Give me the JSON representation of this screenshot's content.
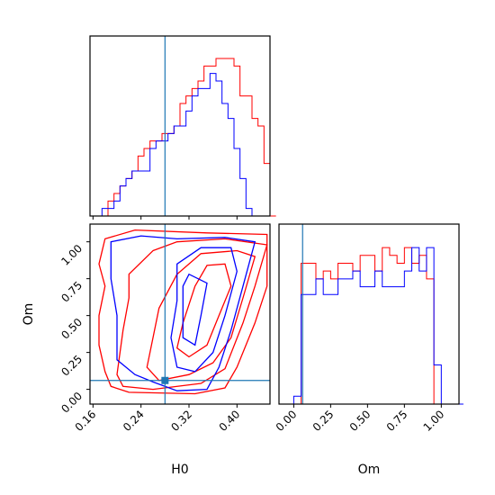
{
  "chart_data": [
    {
      "type": "histogram",
      "panel": "H0 marginal",
      "xlim": [
        0.155,
        0.455
      ],
      "truth": 0.28,
      "series": [
        {
          "color": "#ff0000",
          "x": [
            0.175,
            0.185,
            0.195,
            0.205,
            0.215,
            0.225,
            0.235,
            0.245,
            0.255,
            0.265,
            0.275,
            0.285,
            0.295,
            0.305,
            0.315,
            0.325,
            0.335,
            0.345,
            0.355,
            0.365,
            0.375,
            0.385,
            0.395,
            0.405,
            0.415,
            0.425,
            0.435,
            0.445,
            0.455
          ],
          "y": [
            0,
            2,
            3,
            4,
            5,
            6,
            8,
            9,
            10,
            10,
            11,
            11,
            12,
            15,
            16,
            17,
            18,
            20,
            20,
            21,
            21,
            21,
            20,
            16,
            16,
            13,
            12,
            7,
            0
          ]
        },
        {
          "color": "#0000ff",
          "x": [
            0.165,
            0.175,
            0.185,
            0.195,
            0.205,
            0.215,
            0.225,
            0.235,
            0.245,
            0.255,
            0.265,
            0.275,
            0.285,
            0.295,
            0.305,
            0.315,
            0.325,
            0.335,
            0.345,
            0.355,
            0.365,
            0.375,
            0.385,
            0.395,
            0.405,
            0.415,
            0.425
          ],
          "y": [
            0,
            1,
            1,
            2,
            4,
            5,
            6,
            6,
            6,
            9,
            10,
            10,
            11,
            12,
            12,
            14,
            16,
            17,
            17,
            19,
            18,
            15,
            13,
            9,
            5,
            1,
            0
          ]
        }
      ],
      "xticks": [
        "0.16",
        "0.24",
        "0.32",
        "0.40"
      ]
    },
    {
      "type": "contour",
      "panel": "H0 vs Om",
      "xlabel": "H0",
      "ylabel": "Om",
      "xlim": [
        0.155,
        0.455
      ],
      "ylim": [
        -0.1,
        1.12
      ],
      "truth": {
        "x": 0.28,
        "y": 0.06
      },
      "xticks": [
        "0.16",
        "0.24",
        "0.32",
        "0.40"
      ],
      "yticks": [
        "0.00",
        "0.25",
        "0.50",
        "0.75",
        "1.00"
      ],
      "series": [
        {
          "color": "#ff0000",
          "contours": [
            [
              [
                0.18,
                1.02
              ],
              [
                0.23,
                1.08
              ],
              [
                0.35,
                1.06
              ],
              [
                0.45,
                1.05
              ],
              [
                0.45,
                0.7
              ],
              [
                0.43,
                0.45
              ],
              [
                0.4,
                0.15
              ],
              [
                0.38,
                0.01
              ],
              [
                0.33,
                -0.03
              ],
              [
                0.22,
                -0.02
              ],
              [
                0.19,
                0.02
              ],
              [
                0.18,
                0.12
              ],
              [
                0.17,
                0.3
              ],
              [
                0.17,
                0.5
              ],
              [
                0.18,
                0.7
              ],
              [
                0.17,
                0.85
              ],
              [
                0.18,
                1.02
              ]
            ],
            [
              [
                0.26,
                0.94
              ],
              [
                0.3,
                1.0
              ],
              [
                0.38,
                1.02
              ],
              [
                0.45,
                0.98
              ],
              [
                0.43,
                0.7
              ],
              [
                0.41,
                0.45
              ],
              [
                0.38,
                0.14
              ],
              [
                0.34,
                0.04
              ],
              [
                0.26,
                0.0
              ],
              [
                0.21,
                0.02
              ],
              [
                0.2,
                0.1
              ],
              [
                0.21,
                0.4
              ],
              [
                0.22,
                0.62
              ],
              [
                0.22,
                0.78
              ],
              [
                0.26,
                0.94
              ]
            ],
            [
              [
                0.3,
                0.78
              ],
              [
                0.34,
                0.92
              ],
              [
                0.4,
                0.94
              ],
              [
                0.43,
                0.9
              ],
              [
                0.41,
                0.62
              ],
              [
                0.39,
                0.35
              ],
              [
                0.36,
                0.18
              ],
              [
                0.32,
                0.1
              ],
              [
                0.27,
                0.06
              ],
              [
                0.25,
                0.15
              ],
              [
                0.26,
                0.35
              ],
              [
                0.27,
                0.55
              ],
              [
                0.3,
                0.78
              ]
            ],
            [
              [
                0.33,
                0.7
              ],
              [
                0.35,
                0.84
              ],
              [
                0.38,
                0.85
              ],
              [
                0.39,
                0.7
              ],
              [
                0.37,
                0.5
              ],
              [
                0.35,
                0.3
              ],
              [
                0.32,
                0.22
              ],
              [
                0.3,
                0.28
              ],
              [
                0.31,
                0.45
              ],
              [
                0.33,
                0.7
              ]
            ]
          ]
        },
        {
          "color": "#0000ff",
          "contours": [
            [
              [
                0.19,
                1.0
              ],
              [
                0.24,
                1.04
              ],
              [
                0.3,
                1.02
              ],
              [
                0.38,
                1.03
              ],
              [
                0.43,
                1.0
              ],
              [
                0.41,
                0.7
              ],
              [
                0.39,
                0.4
              ],
              [
                0.37,
                0.15
              ],
              [
                0.35,
                0.0
              ],
              [
                0.3,
                -0.01
              ],
              [
                0.26,
                0.05
              ],
              [
                0.23,
                0.1
              ],
              [
                0.2,
                0.2
              ],
              [
                0.2,
                0.5
              ],
              [
                0.19,
                0.75
              ],
              [
                0.19,
                1.0
              ]
            ],
            [
              [
                0.3,
                0.85
              ],
              [
                0.34,
                0.96
              ],
              [
                0.39,
                0.96
              ],
              [
                0.4,
                0.8
              ],
              [
                0.38,
                0.5
              ],
              [
                0.36,
                0.25
              ],
              [
                0.33,
                0.12
              ],
              [
                0.3,
                0.15
              ],
              [
                0.29,
                0.35
              ],
              [
                0.3,
                0.6
              ],
              [
                0.3,
                0.85
              ]
            ],
            [
              [
                0.31,
                0.7
              ],
              [
                0.32,
                0.78
              ],
              [
                0.35,
                0.72
              ],
              [
                0.34,
                0.5
              ],
              [
                0.33,
                0.3
              ],
              [
                0.31,
                0.35
              ],
              [
                0.31,
                0.55
              ],
              [
                0.31,
                0.7
              ]
            ]
          ]
        }
      ]
    },
    {
      "type": "histogram",
      "panel": "Om marginal",
      "xlabel": "Om",
      "xlim": [
        -0.1,
        1.12
      ],
      "truth": 0.06,
      "xticks": [
        "0.00",
        "0.25",
        "0.50",
        "0.75",
        "1.00"
      ],
      "series": [
        {
          "color": "#ff0000",
          "x": [
            0.0,
            0.05,
            0.1,
            0.15,
            0.2,
            0.25,
            0.3,
            0.35,
            0.4,
            0.45,
            0.5,
            0.55,
            0.6,
            0.65,
            0.7,
            0.75,
            0.8,
            0.85,
            0.9,
            0.95,
            1.0
          ],
          "y": [
            0,
            18,
            18,
            16,
            17,
            16,
            18,
            18,
            17,
            19,
            19,
            17,
            20,
            19,
            18,
            20,
            18,
            19,
            16,
            0,
            0
          ]
        },
        {
          "color": "#0000ff",
          "x": [
            -0.05,
            0.0,
            0.05,
            0.1,
            0.15,
            0.2,
            0.25,
            0.3,
            0.35,
            0.4,
            0.45,
            0.5,
            0.55,
            0.6,
            0.65,
            0.7,
            0.75,
            0.8,
            0.85,
            0.9,
            0.95,
            1.0,
            1.05,
            1.1
          ],
          "y": [
            0,
            1,
            14,
            14,
            16,
            14,
            14,
            16,
            16,
            17,
            15,
            15,
            17,
            15,
            15,
            15,
            17,
            20,
            17,
            20,
            5,
            0,
            0,
            0
          ]
        }
      ]
    }
  ]
}
